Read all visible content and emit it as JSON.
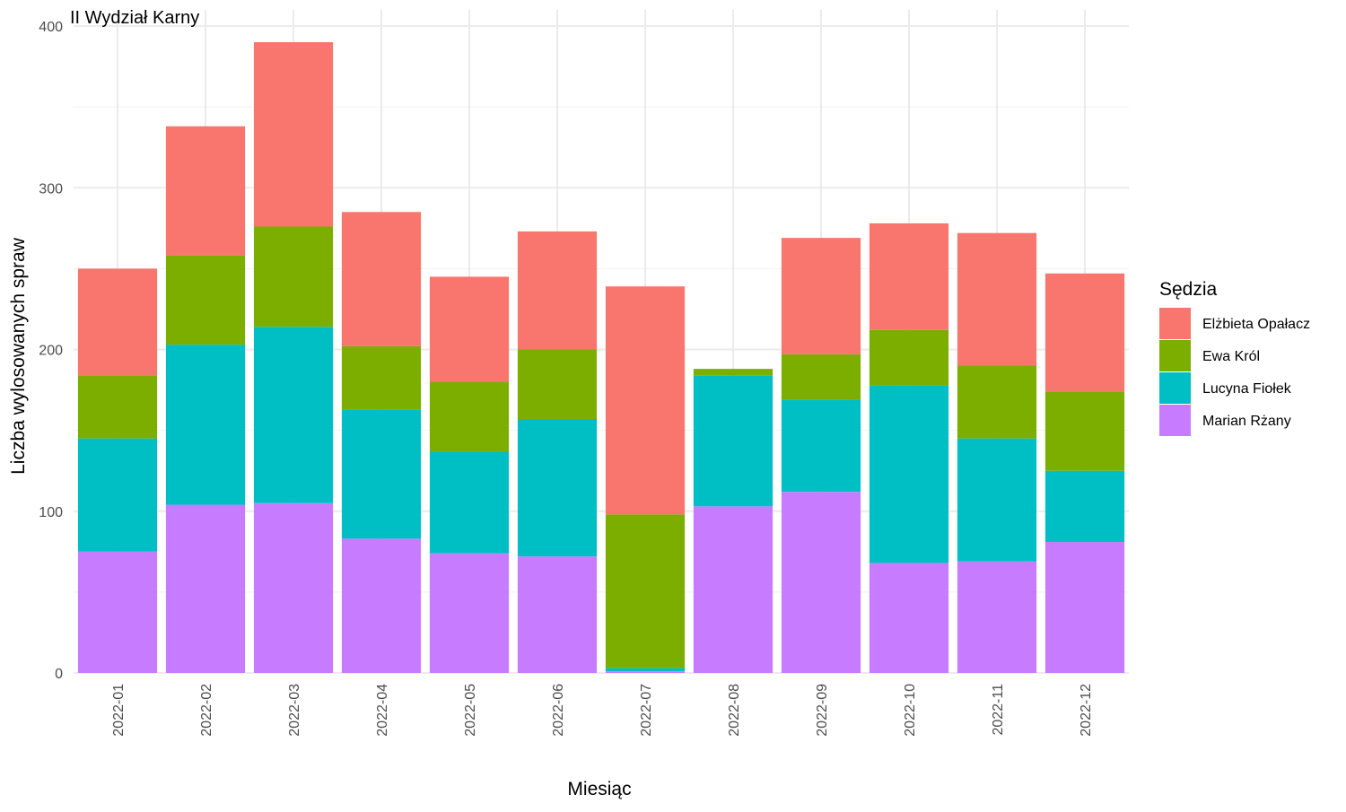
{
  "chart_data": {
    "type": "bar",
    "stacked": true,
    "title": "II Wydział Karny",
    "xlabel": "Miesiąc",
    "ylabel": "Liczba wylosowanych spraw",
    "ylim": [
      0,
      400
    ],
    "yticks": [
      0,
      100,
      200,
      300,
      400
    ],
    "grid": true,
    "legend": {
      "title": "Sędzia",
      "position": "right"
    },
    "categories": [
      "2022-01",
      "2022-02",
      "2022-03",
      "2022-04",
      "2022-05",
      "2022-06",
      "2022-07",
      "2022-08",
      "2022-09",
      "2022-10",
      "2022-11",
      "2022-12"
    ],
    "series": [
      {
        "name": "Marian Rżany",
        "color": "#C77CFF",
        "values": [
          75,
          104,
          105,
          83,
          74,
          72,
          1,
          103,
          112,
          68,
          69,
          81
        ]
      },
      {
        "name": "Lucyna Fiołek",
        "color": "#00BFC4",
        "values": [
          70,
          99,
          109,
          80,
          63,
          85,
          2,
          81,
          57,
          110,
          76,
          44
        ]
      },
      {
        "name": "Ewa Król",
        "color": "#7CAE00",
        "values": [
          39,
          55,
          62,
          39,
          43,
          43,
          95,
          4,
          28,
          34,
          45,
          49
        ]
      },
      {
        "name": "Elżbieta Opałacz",
        "color": "#F8766D",
        "values": [
          66,
          80,
          114,
          83,
          65,
          73,
          141,
          0,
          72,
          66,
          82,
          73
        ]
      }
    ],
    "legend_order": [
      "Elżbieta Opałacz",
      "Ewa Król",
      "Lucyna Fiołek",
      "Marian Rżany"
    ]
  }
}
